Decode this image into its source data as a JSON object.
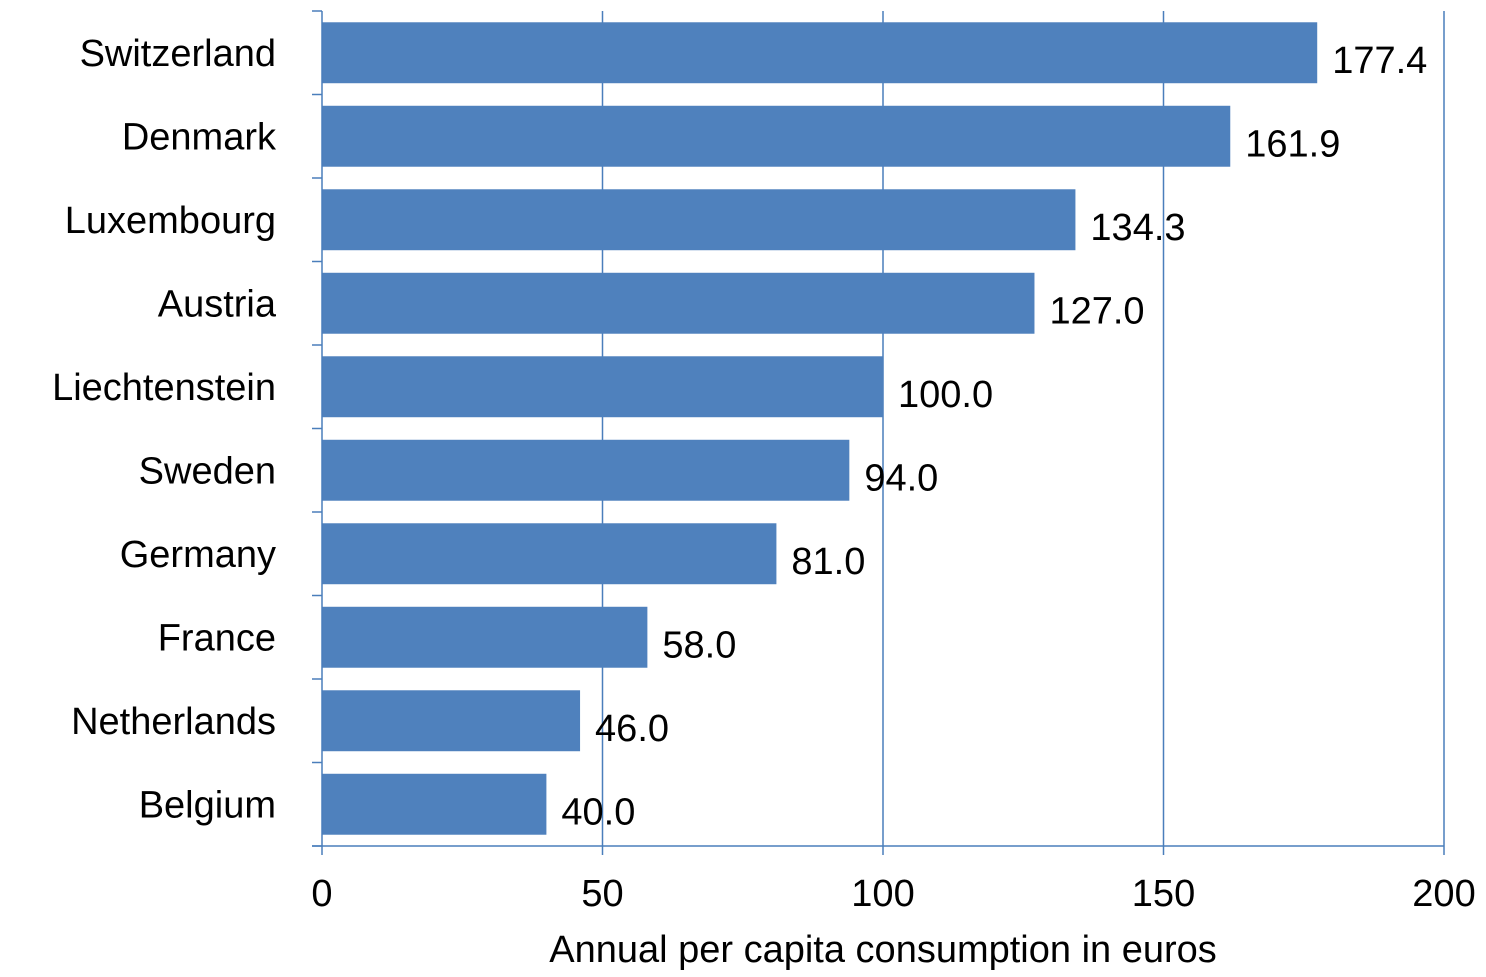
{
  "chart_data": {
    "type": "bar",
    "orientation": "horizontal",
    "categories": [
      "Switzerland",
      "Denmark",
      "Luxembourg",
      "Austria",
      "Liechtenstein",
      "Sweden",
      "Germany",
      "France",
      "Netherlands",
      "Belgium"
    ],
    "values": [
      177.4,
      161.9,
      134.3,
      127.0,
      100.0,
      94.0,
      81.0,
      58.0,
      46.0,
      40.0
    ],
    "value_labels": [
      "177.4",
      "161.9",
      "134.3",
      "127.0",
      "100.0",
      "94.0",
      "81.0",
      "58.0",
      "46.0",
      "40.0"
    ],
    "title": "",
    "xlabel": "Annual per capita consumption in euros",
    "ylabel": "",
    "xlim": [
      0,
      200
    ],
    "xticks": [
      0,
      50,
      100,
      150,
      200
    ],
    "xtick_labels": [
      "0",
      "50",
      "100",
      "150",
      "200"
    ],
    "grid": "vertical",
    "legend": "none",
    "bar_color": "#4f81bd",
    "grid_color": "#4a7ebb"
  }
}
